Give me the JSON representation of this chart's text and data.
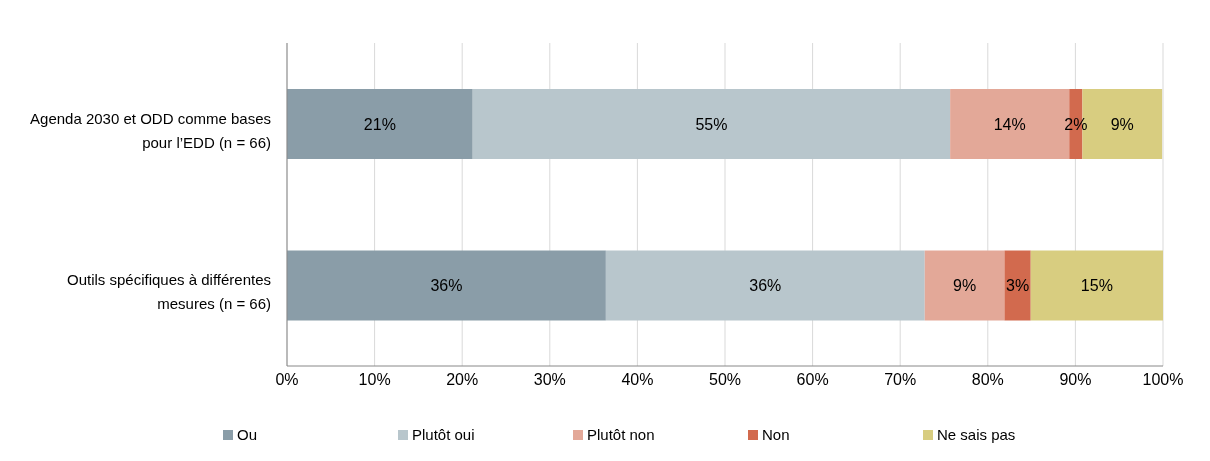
{
  "chart_data": {
    "type": "bar",
    "orientation": "horizontal",
    "stacked": true,
    "categories": [
      "Agenda 2030 et ODD comme bases pour l’EDD (n = 66)",
      "Outils spécifiques à différentes mesures (n = 66)"
    ],
    "series": [
      {
        "name": "Ou",
        "color": "#8a9da8",
        "values": [
          21.2,
          36.4
        ],
        "value_labels": [
          "21%",
          "36%"
        ]
      },
      {
        "name": "Plutôt oui",
        "color": "#b8c6cc",
        "values": [
          54.5,
          36.4
        ],
        "value_labels": [
          "55%",
          "36%"
        ]
      },
      {
        "name": "Plutôt non",
        "color": "#e3a898",
        "values": [
          13.6,
          9.1
        ],
        "value_labels": [
          "14%",
          "9%"
        ]
      },
      {
        "name": "Non",
        "color": "#d26a4e",
        "values": [
          1.5,
          3.0
        ],
        "value_labels": [
          "2%",
          "3%"
        ]
      },
      {
        "name": "Ne sais pas",
        "color": "#d8cd80",
        "values": [
          9.1,
          15.1
        ],
        "value_labels": [
          "9%",
          "15%"
        ]
      }
    ],
    "xlim": [
      0,
      100
    ],
    "xticks": [
      {
        "value": 0,
        "label": "0%"
      },
      {
        "value": 10,
        "label": "10%"
      },
      {
        "value": 20,
        "label": "20%"
      },
      {
        "value": 30,
        "label": "30%"
      },
      {
        "value": 40,
        "label": "40%"
      },
      {
        "value": 50,
        "label": "50%"
      },
      {
        "value": 60,
        "label": "60%"
      },
      {
        "value": 70,
        "label": "70%"
      },
      {
        "value": 80,
        "label": "80%"
      },
      {
        "value": 90,
        "label": "90%"
      },
      {
        "value": 100,
        "label": "100%"
      }
    ],
    "grid": "x",
    "legend": "bottom"
  }
}
